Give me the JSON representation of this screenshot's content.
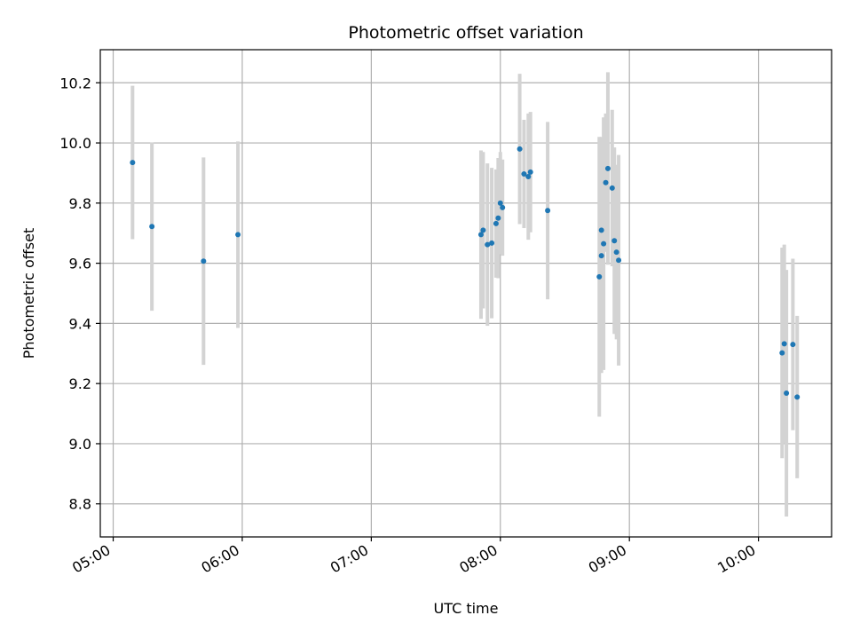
{
  "chart_data": {
    "type": "scatter",
    "title": "Photometric offset variation",
    "xlabel": "UTC time",
    "ylabel": "Photometric offset",
    "x_unit": "UTC time (HH:MM)",
    "xlim": [
      "04:54",
      "10:34"
    ],
    "ylim": [
      8.69,
      10.31
    ],
    "x_ticks": [
      "05:00",
      "06:00",
      "07:00",
      "08:00",
      "09:00",
      "10:00"
    ],
    "y_ticks": [
      8.8,
      9.0,
      9.2,
      9.4,
      9.6,
      9.8,
      10.0,
      10.2
    ],
    "grid": true,
    "colors": {
      "point": "#1f77b4",
      "errorbar": "#d3d3d3",
      "grid": "#b0b0b0",
      "axes": "#000000"
    },
    "series": [
      {
        "points": [
          {
            "x": "05:09",
            "y": 9.935,
            "err": 0.255
          },
          {
            "x": "05:18",
            "y": 9.722,
            "err": 0.28
          },
          {
            "x": "05:42",
            "y": 9.607,
            "err": 0.345
          },
          {
            "x": "05:58",
            "y": 9.695,
            "err": 0.31
          },
          {
            "x": "07:51",
            "y": 9.695,
            "err": 0.28
          },
          {
            "x": "07:52",
            "y": 9.71,
            "err": 0.26
          },
          {
            "x": "07:54",
            "y": 9.662,
            "err": 0.27
          },
          {
            "x": "07:56",
            "y": 9.667,
            "err": 0.25
          },
          {
            "x": "07:58",
            "y": 9.732,
            "err": 0.18
          },
          {
            "x": "07:59",
            "y": 9.75,
            "err": 0.2
          },
          {
            "x": "08:00",
            "y": 9.8,
            "err": 0.17
          },
          {
            "x": "08:01",
            "y": 9.785,
            "err": 0.16
          },
          {
            "x": "08:09",
            "y": 9.98,
            "err": 0.25
          },
          {
            "x": "08:11",
            "y": 9.897,
            "err": 0.18
          },
          {
            "x": "08:13",
            "y": 9.888,
            "err": 0.21
          },
          {
            "x": "08:14",
            "y": 9.903,
            "err": 0.2
          },
          {
            "x": "08:22",
            "y": 9.775,
            "err": 0.295
          },
          {
            "x": "08:46",
            "y": 9.555,
            "err": 0.465
          },
          {
            "x": "08:47",
            "y": 9.625,
            "err": 0.39
          },
          {
            "x": "08:47",
            "y": 9.71,
            "err": 0.31
          },
          {
            "x": "08:48",
            "y": 9.665,
            "err": 0.42
          },
          {
            "x": "08:49",
            "y": 9.868,
            "err": 0.23
          },
          {
            "x": "08:50",
            "y": 9.915,
            "err": 0.32
          },
          {
            "x": "08:52",
            "y": 9.85,
            "err": 0.26
          },
          {
            "x": "08:53",
            "y": 9.675,
            "err": 0.31
          },
          {
            "x": "08:54",
            "y": 9.637,
            "err": 0.29
          },
          {
            "x": "08:55",
            "y": 9.61,
            "err": 0.35
          },
          {
            "x": "10:11",
            "y": 9.302,
            "err": 0.35
          },
          {
            "x": "10:12",
            "y": 9.332,
            "err": 0.33
          },
          {
            "x": "10:13",
            "y": 9.168,
            "err": 0.41
          },
          {
            "x": "10:16",
            "y": 9.33,
            "err": 0.285
          },
          {
            "x": "10:18",
            "y": 9.155,
            "err": 0.27
          }
        ]
      }
    ]
  }
}
